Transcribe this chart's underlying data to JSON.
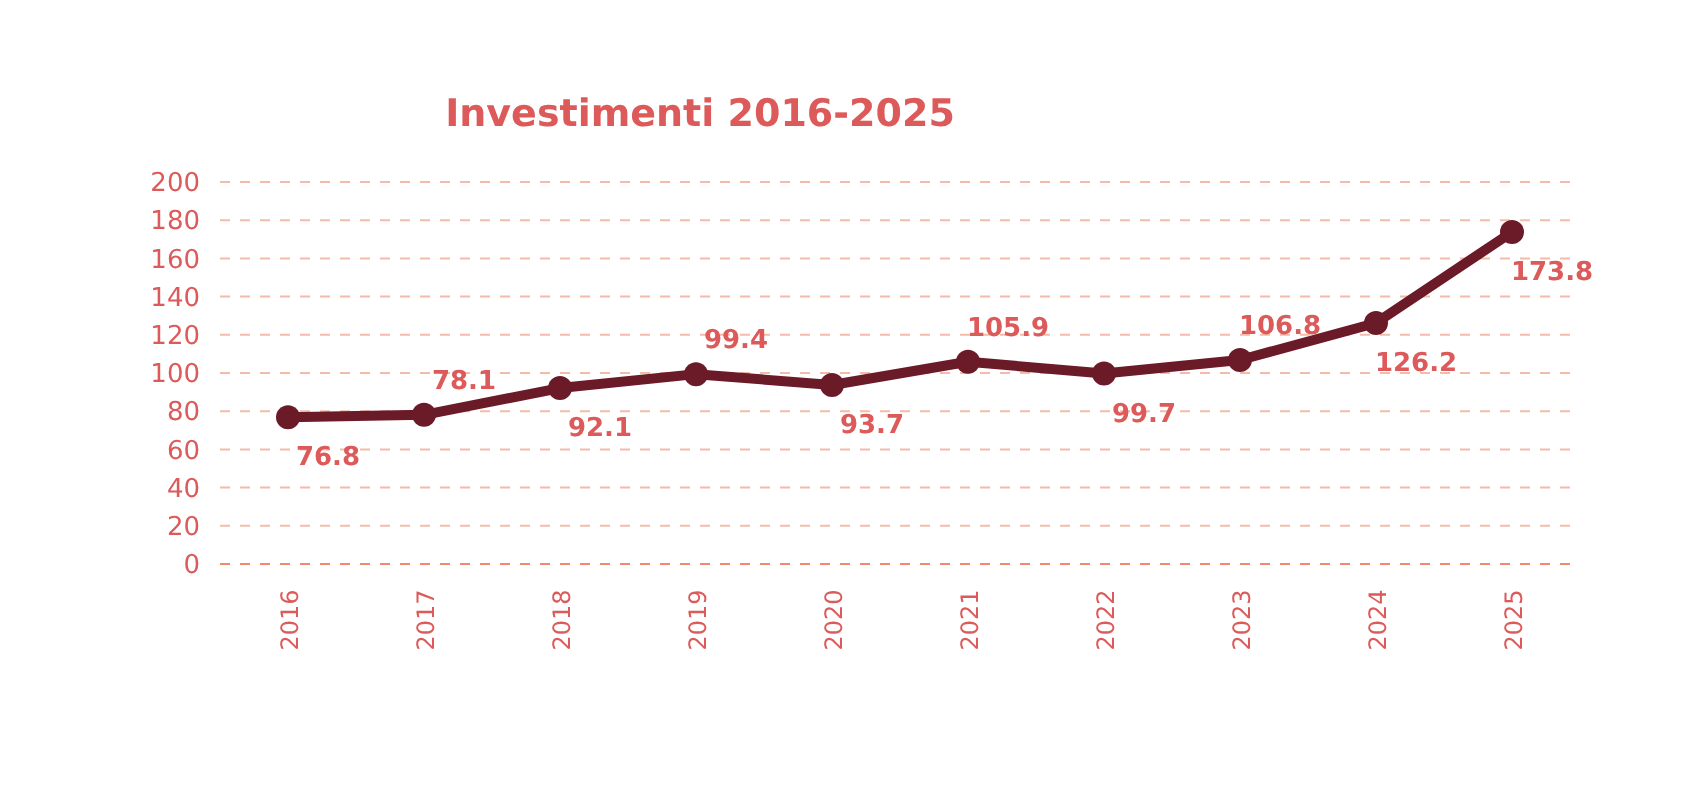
{
  "chart_data": {
    "type": "line",
    "title": "Investimenti 2016-2025",
    "categories": [
      "2016",
      "2017",
      "2018",
      "2019",
      "2020",
      "2021",
      "2022",
      "2023",
      "2024",
      "2025"
    ],
    "series": [
      {
        "color": "#6b1a28",
        "values": [
          76.8,
          78.1,
          92.1,
          99.4,
          93.7,
          105.9,
          99.7,
          106.8,
          126.2,
          173.8
        ]
      }
    ],
    "ylim": [
      0,
      200
    ],
    "yticks": [
      0,
      20,
      40,
      60,
      80,
      100,
      120,
      140,
      160,
      180,
      200
    ],
    "grid": "y",
    "marker": "circle",
    "line_style": "solid",
    "data_labels": true
  }
}
